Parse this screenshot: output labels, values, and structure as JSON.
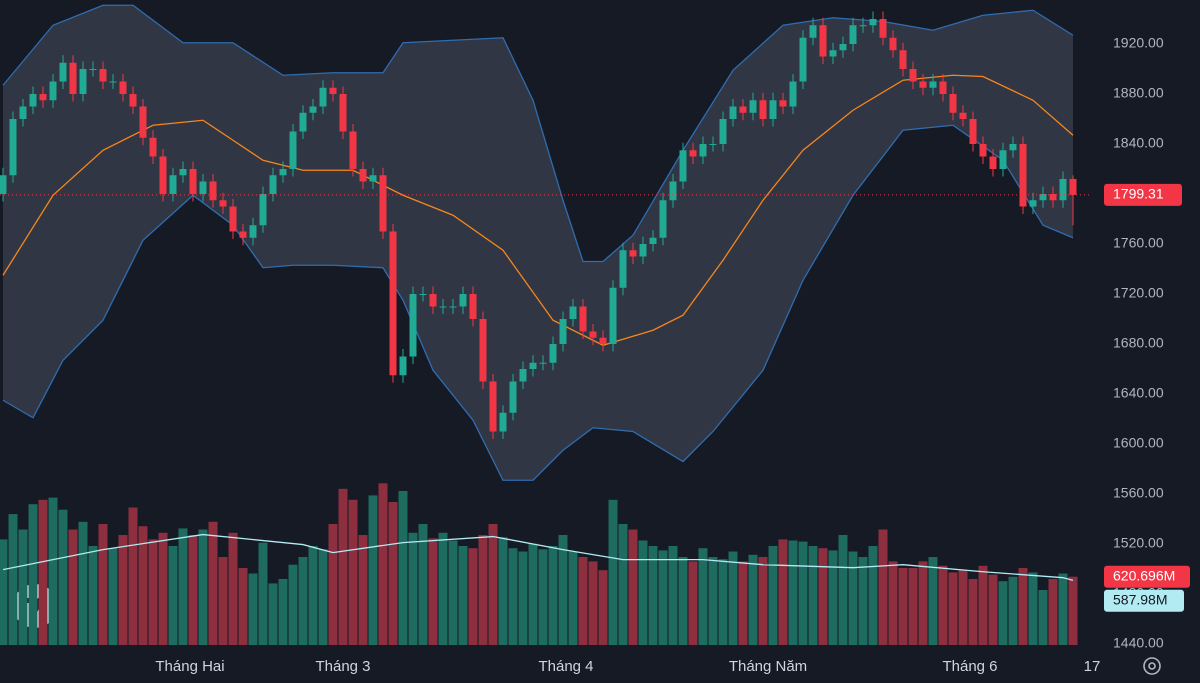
{
  "chart_data": {
    "type": "candlestick",
    "open": [
      1800,
      1815,
      1860,
      1870,
      1880,
      1875,
      1890,
      1905,
      1880,
      1900,
      1900,
      1890,
      1890,
      1880,
      1870,
      1845,
      1830,
      1800,
      1815,
      1820,
      1800,
      1810,
      1795,
      1790,
      1770,
      1765,
      1775,
      1800,
      1815,
      1820,
      1850,
      1865,
      1870,
      1885,
      1880,
      1850,
      1820,
      1810,
      1815,
      1770,
      1655,
      1670,
      1720,
      1720,
      1710,
      1710,
      1710,
      1720,
      1700,
      1650,
      1610,
      1625,
      1650,
      1660,
      1665,
      1665,
      1680,
      1700,
      1710,
      1690,
      1685,
      1680,
      1725,
      1755,
      1750,
      1760,
      1765,
      1795,
      1810,
      1835,
      1830,
      1840,
      1840,
      1860,
      1870,
      1865,
      1875,
      1860,
      1875,
      1870,
      1890,
      1925,
      1935,
      1910,
      1915,
      1920,
      1935,
      1935,
      1940,
      1925,
      1915,
      1900,
      1890,
      1885,
      1890,
      1880,
      1865,
      1860,
      1840,
      1830,
      1820,
      1835,
      1840,
      1790,
      1795,
      1800,
      1795,
      1812
    ],
    "high": [
      1821,
      1866,
      1876,
      1886,
      1886,
      1896,
      1911,
      1911,
      1906,
      1906,
      1906,
      1896,
      1896,
      1886,
      1876,
      1851,
      1836,
      1821,
      1826,
      1826,
      1816,
      1816,
      1801,
      1796,
      1776,
      1781,
      1806,
      1821,
      1826,
      1856,
      1871,
      1876,
      1891,
      1891,
      1886,
      1856,
      1826,
      1821,
      1821,
      1776,
      1676,
      1726,
      1726,
      1726,
      1716,
      1716,
      1726,
      1726,
      1706,
      1656,
      1631,
      1656,
      1666,
      1671,
      1671,
      1686,
      1706,
      1716,
      1716,
      1696,
      1691,
      1731,
      1761,
      1761,
      1766,
      1771,
      1801,
      1816,
      1841,
      1841,
      1846,
      1846,
      1866,
      1876,
      1876,
      1881,
      1881,
      1881,
      1881,
      1896,
      1931,
      1941,
      1941,
      1921,
      1926,
      1941,
      1941,
      1946,
      1946,
      1931,
      1921,
      1906,
      1896,
      1896,
      1896,
      1886,
      1871,
      1866,
      1846,
      1836,
      1841,
      1846,
      1846,
      1801,
      1806,
      1806,
      1818,
      1815
    ],
    "low": [
      1794,
      1809,
      1854,
      1864,
      1869,
      1869,
      1884,
      1874,
      1874,
      1894,
      1884,
      1884,
      1874,
      1864,
      1839,
      1824,
      1794,
      1794,
      1809,
      1794,
      1794,
      1789,
      1784,
      1764,
      1759,
      1759,
      1769,
      1794,
      1809,
      1814,
      1844,
      1859,
      1864,
      1874,
      1844,
      1814,
      1804,
      1804,
      1764,
      1649,
      1649,
      1664,
      1714,
      1704,
      1704,
      1704,
      1704,
      1694,
      1644,
      1604,
      1604,
      1619,
      1644,
      1654,
      1659,
      1659,
      1674,
      1694,
      1684,
      1679,
      1674,
      1674,
      1719,
      1744,
      1744,
      1754,
      1759,
      1789,
      1804,
      1824,
      1824,
      1834,
      1834,
      1854,
      1859,
      1859,
      1854,
      1854,
      1864,
      1864,
      1884,
      1919,
      1904,
      1904,
      1909,
      1914,
      1929,
      1929,
      1919,
      1909,
      1894,
      1884,
      1879,
      1879,
      1874,
      1859,
      1854,
      1834,
      1824,
      1814,
      1814,
      1829,
      1784,
      1784,
      1789,
      1789,
      1789,
      1775
    ],
    "close": [
      1815,
      1860,
      1870,
      1880,
      1875,
      1890,
      1905,
      1880,
      1900,
      1900,
      1890,
      1890,
      1880,
      1870,
      1845,
      1830,
      1800,
      1815,
      1820,
      1800,
      1810,
      1795,
      1790,
      1770,
      1765,
      1775,
      1800,
      1815,
      1820,
      1850,
      1865,
      1870,
      1885,
      1880,
      1850,
      1820,
      1810,
      1815,
      1770,
      1655,
      1670,
      1720,
      1720,
      1710,
      1710,
      1710,
      1720,
      1700,
      1650,
      1610,
      1625,
      1650,
      1660,
      1665,
      1665,
      1680,
      1700,
      1710,
      1690,
      1685,
      1680,
      1725,
      1755,
      1750,
      1760,
      1765,
      1795,
      1810,
      1835,
      1830,
      1840,
      1840,
      1860,
      1870,
      1865,
      1875,
      1860,
      1875,
      1870,
      1890,
      1925,
      1935,
      1910,
      1915,
      1920,
      1935,
      1935,
      1940,
      1925,
      1915,
      1900,
      1890,
      1885,
      1890,
      1880,
      1865,
      1860,
      1840,
      1830,
      1820,
      1835,
      1840,
      1790,
      1795,
      1800,
      1795,
      1812,
      1799.31
    ],
    "up_color": "#22ab94",
    "down_color": "#f23645",
    "volume": {
      "values": [
        960,
        1190,
        1050,
        1280,
        1320,
        1340,
        1230,
        1050,
        1120,
        900,
        1100,
        880,
        1000,
        1250,
        1080,
        960,
        1020,
        900,
        1060,
        1000,
        1050,
        1120,
        800,
        1020,
        700,
        650,
        930,
        560,
        600,
        730,
        800,
        900,
        870,
        1100,
        1420,
        1320,
        1000,
        1360,
        1470,
        1300,
        1400,
        1020,
        1100,
        970,
        1020,
        950,
        900,
        880,
        1000,
        1100,
        980,
        880,
        850,
        920,
        870,
        900,
        1000,
        850,
        800,
        760,
        680,
        1320,
        1100,
        1050,
        950,
        900,
        860,
        900,
        800,
        760,
        880,
        800,
        780,
        850,
        760,
        820,
        800,
        900,
        960,
        950,
        940,
        900,
        880,
        860,
        1000,
        850,
        800,
        900,
        1050,
        760,
        700,
        700,
        760,
        800,
        720,
        660,
        680,
        600,
        720,
        640,
        580,
        620,
        700,
        660,
        500,
        600,
        650,
        620.696
      ],
      "last_label": "620.696M",
      "up_color": "#1e6b60",
      "down_color": "#8e2f3f",
      "ylim": [
        0,
        1500
      ]
    },
    "volume_ma": {
      "x": [
        0,
        10,
        20,
        30,
        33,
        40,
        49,
        56,
        62,
        70,
        76,
        85,
        90,
        98,
        106,
        107
      ],
      "values": [
        685,
        867,
        1004,
        913,
        840,
        931,
        986,
        867,
        776,
        776,
        730,
        703,
        730,
        666,
        612,
        587.98
      ],
      "last_label": "587.98M",
      "color": "#b2ebf2"
    },
    "bollinger": {
      "color": "#2f6db0",
      "fill": "rgba(120,128,150,0.28)",
      "upper": {
        "x": [
          0,
          5,
          10,
          13,
          18,
          23,
          28,
          33,
          38,
          40,
          45,
          50,
          53,
          56,
          58,
          60,
          63,
          68,
          73,
          78,
          83,
          88,
          93,
          98,
          103,
          107
        ],
        "values": [
          1887,
          1935,
          1951,
          1951,
          1921,
          1921,
          1895,
          1897,
          1897,
          1921,
          1923,
          1925,
          1875,
          1795,
          1746,
          1746,
          1767,
          1835,
          1899,
          1935,
          1941,
          1938,
          1931,
          1943,
          1947,
          1927
        ]
      },
      "lower": {
        "x": [
          0,
          3,
          6,
          10,
          14,
          19,
          23,
          26,
          29,
          33,
          38,
          40,
          43,
          47,
          50,
          53,
          56,
          59,
          63,
          68,
          71,
          76,
          80,
          85,
          90,
          95,
          100,
          104,
          107
        ],
        "values": [
          1635,
          1621,
          1667,
          1699,
          1763,
          1799,
          1775,
          1741,
          1743,
          1743,
          1741,
          1715,
          1659,
          1619,
          1571,
          1571,
          1595,
          1613,
          1610,
          1586,
          1610,
          1659,
          1731,
          1799,
          1851,
          1855,
          1827,
          1775,
          1765
        ]
      },
      "basis": {
        "x": [
          0,
          5,
          10,
          15,
          20,
          23,
          26,
          30,
          35,
          40,
          45,
          50,
          55,
          60,
          65,
          68,
          72,
          76,
          80,
          85,
          90,
          95,
          98,
          103,
          107
        ],
        "values": [
          1735,
          1799,
          1835,
          1855,
          1859,
          1843,
          1827,
          1819,
          1819,
          1799,
          1783,
          1755,
          1699,
          1679,
          1691,
          1703,
          1747,
          1795,
          1835,
          1867,
          1891,
          1895,
          1894,
          1875,
          1847
        ],
        "color": "#f7861c"
      }
    },
    "ylim": [
      1439.2,
      1955.2
    ],
    "yticks": [
      {
        "value": 1440,
        "label": "1440.00"
      },
      {
        "value": 1480,
        "label": "1480.00"
      },
      {
        "value": 1520,
        "label": "1520.00"
      },
      {
        "value": 1560,
        "label": "1560.00"
      },
      {
        "value": 1600,
        "label": "1600.00"
      },
      {
        "value": 1640,
        "label": "1640.00"
      },
      {
        "value": 1680,
        "label": "1680.00"
      },
      {
        "value": 1720,
        "label": "1720.00"
      },
      {
        "value": 1760,
        "label": "1760.00"
      },
      {
        "value": 1800,
        "label": "1800.00"
      },
      {
        "value": 1840,
        "label": "1840.00"
      },
      {
        "value": 1880,
        "label": "1880.00"
      },
      {
        "value": 1920,
        "label": "1920.00"
      }
    ],
    "xticks": [
      {
        "value": 18.7,
        "label": "Tháng Hai"
      },
      {
        "value": 34,
        "label": "Tháng 3"
      },
      {
        "value": 56.3,
        "label": "Tháng 4"
      },
      {
        "value": 76.5,
        "label": "Tháng Năm"
      },
      {
        "value": 96.7,
        "label": "Tháng 6"
      },
      {
        "value": 108.9,
        "label": "17"
      }
    ]
  }
}
